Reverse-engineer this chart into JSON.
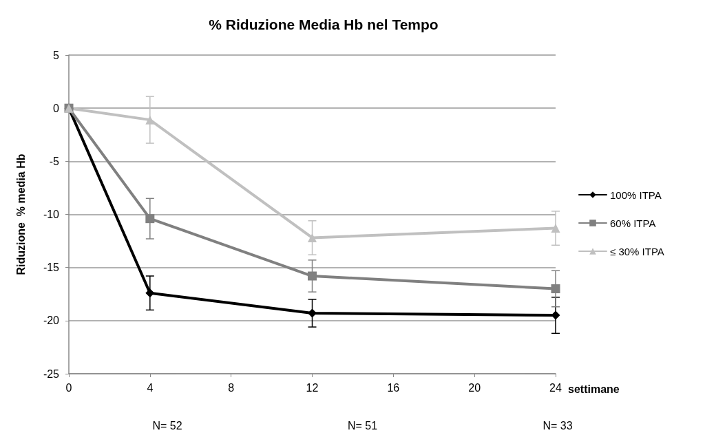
{
  "chart_data": {
    "type": "line",
    "title": "% Riduzione Media Hb nel Tempo",
    "xlabel": "settimane",
    "ylabel": "Riduzione  % media Hb",
    "x": [
      0,
      4,
      12,
      24
    ],
    "series": [
      {
        "name": "100% ITPA",
        "color": "#000000",
        "marker": "diamond",
        "values": [
          0,
          -17.4,
          -19.3,
          -19.5
        ],
        "errors": [
          null,
          1.6,
          1.3,
          1.7
        ]
      },
      {
        "name": "60% ITPA",
        "color": "#808080",
        "marker": "square",
        "values": [
          0,
          -10.4,
          -15.8,
          -17.0
        ],
        "errors": [
          null,
          1.9,
          1.5,
          1.7
        ]
      },
      {
        "name": "≤ 30% ITPA",
        "color": "#c0c0c0",
        "marker": "triangle",
        "values": [
          0,
          -1.1,
          -12.2,
          -11.3
        ],
        "errors": [
          null,
          2.2,
          1.6,
          1.6
        ]
      }
    ],
    "xlim": [
      0,
      24
    ],
    "xticks": [
      0,
      4,
      8,
      12,
      16,
      20,
      24
    ],
    "ylim": [
      -25,
      5
    ],
    "yticks": [
      -25,
      -20,
      -15,
      -10,
      -5,
      0,
      5
    ],
    "grid": "y",
    "legend": "right",
    "line_style": "solid",
    "annotations": [
      "N= 52",
      "N= 51",
      "N= 33"
    ]
  }
}
